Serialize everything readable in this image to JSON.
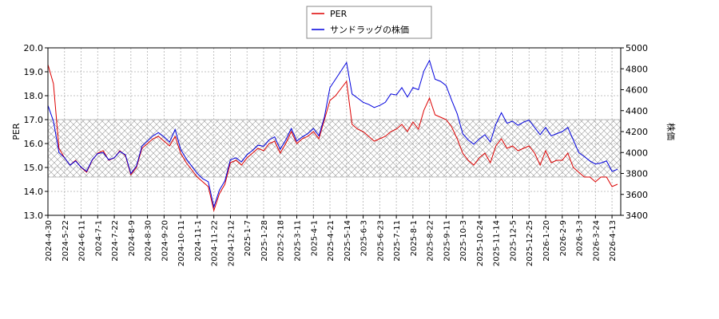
{
  "chart_data": {
    "type": "line",
    "categories": [
      "2024-4-30",
      null,
      null,
      "2024-5-22",
      null,
      null,
      "2024-6-11",
      null,
      null,
      "2024-7-1",
      null,
      null,
      "2024-7-22",
      null,
      null,
      "2024-8-9",
      null,
      null,
      "2024-8-30",
      null,
      null,
      "2024-9-20",
      null,
      null,
      "2024-10-11",
      null,
      null,
      "2024-11-1",
      null,
      null,
      "2024-11-22",
      null,
      null,
      "2024-12-12",
      null,
      null,
      "2025-1-7",
      null,
      null,
      "2025-1-28",
      null,
      null,
      "2025-2-18",
      null,
      null,
      "2025-3-11",
      null,
      null,
      "2025-4-1",
      null,
      null,
      "2025-4-21",
      null,
      null,
      "2025-5-14",
      null,
      null,
      "2025-6-3",
      null,
      null,
      "2025-6-23",
      null,
      null,
      "2025-7-11",
      null,
      null,
      "2025-8-1",
      null,
      null,
      "2025-8-22",
      null,
      null,
      "2025-9-11",
      null,
      null,
      "2025-10-3",
      null,
      null,
      "2025-10-24",
      null,
      null,
      "2025-11-14",
      null,
      null,
      "2025-12-5",
      null,
      null,
      "2025-12-25",
      null,
      null,
      "2026-1-20",
      null,
      null,
      "2026-2-9",
      null,
      null,
      "2026-3-3",
      null,
      null,
      "2026-3-24",
      null,
      null,
      "2026-4-13",
      null
    ],
    "series": [
      {
        "name": "PER",
        "color": "#dd0000",
        "axis": "y",
        "values": [
          19.3,
          18.5,
          15.8,
          15.4,
          15.1,
          15.3,
          15.0,
          14.8,
          15.3,
          15.6,
          15.7,
          15.3,
          15.4,
          15.7,
          15.5,
          14.7,
          15.0,
          15.8,
          16.0,
          16.2,
          16.3,
          16.1,
          15.9,
          16.3,
          15.6,
          15.2,
          14.9,
          14.6,
          14.4,
          14.2,
          13.2,
          13.9,
          14.3,
          15.2,
          15.3,
          15.1,
          15.4,
          15.6,
          15.8,
          15.7,
          16.0,
          16.1,
          15.6,
          16.0,
          16.5,
          16.0,
          16.2,
          16.3,
          16.5,
          16.2,
          17.0,
          17.8,
          18.0,
          18.3,
          18.6,
          16.8,
          16.6,
          16.5,
          16.3,
          16.1,
          16.2,
          16.3,
          16.5,
          16.6,
          16.8,
          16.5,
          16.9,
          16.6,
          17.4,
          17.9,
          17.2,
          17.1,
          17.0,
          16.7,
          16.2,
          15.6,
          15.3,
          15.1,
          15.4,
          15.6,
          15.2,
          15.9,
          16.2,
          15.8,
          15.9,
          15.7,
          15.8,
          15.9,
          15.6,
          15.1,
          15.7,
          15.2,
          15.3,
          15.3,
          15.6,
          15.0,
          14.8,
          14.6,
          14.6,
          14.4,
          14.6,
          14.6,
          14.2,
          14.3
        ]
      },
      {
        "name": "サンドラッグの株価",
        "color": "#0000dd",
        "axis": "y2",
        "values": [
          4450,
          4300,
          4000,
          3950,
          3880,
          3920,
          3860,
          3820,
          3930,
          3990,
          4000,
          3930,
          3950,
          4010,
          3980,
          3800,
          3870,
          4060,
          4110,
          4160,
          4190,
          4150,
          4100,
          4220,
          4030,
          3940,
          3870,
          3800,
          3750,
          3720,
          3480,
          3640,
          3730,
          3930,
          3950,
          3910,
          3980,
          4020,
          4070,
          4060,
          4120,
          4150,
          4030,
          4120,
          4230,
          4110,
          4150,
          4180,
          4230,
          4160,
          4340,
          4620,
          4700,
          4780,
          4860,
          4560,
          4520,
          4480,
          4460,
          4430,
          4450,
          4480,
          4560,
          4550,
          4620,
          4530,
          4620,
          4600,
          4780,
          4880,
          4700,
          4680,
          4640,
          4500,
          4370,
          4180,
          4120,
          4080,
          4130,
          4170,
          4100,
          4270,
          4380,
          4280,
          4300,
          4260,
          4290,
          4310,
          4240,
          4170,
          4240,
          4160,
          4180,
          4200,
          4240,
          4120,
          4000,
          3960,
          3920,
          3890,
          3900,
          3920,
          3820,
          3840
        ]
      }
    ],
    "ylabel": "PER",
    "y2label": "株価",
    "ylim": [
      13,
      20
    ],
    "yticks": [
      {
        "value": 13,
        "label": "13.0"
      },
      {
        "value": 14,
        "label": "14.0"
      },
      {
        "value": 15,
        "label": "15.0"
      },
      {
        "value": 16,
        "label": "16.0"
      },
      {
        "value": 17,
        "label": "17.0"
      },
      {
        "value": 18,
        "label": "18.0"
      },
      {
        "value": 19,
        "label": "19.0"
      },
      {
        "value": 20,
        "label": "20.0"
      }
    ],
    "y2lim": [
      3400,
      5000
    ],
    "y2ticks": [
      3400,
      3600,
      3800,
      4000,
      4200,
      4400,
      4600,
      4800,
      5000
    ],
    "shaded_range": [
      14.6,
      17.0
    ],
    "grid": true
  }
}
